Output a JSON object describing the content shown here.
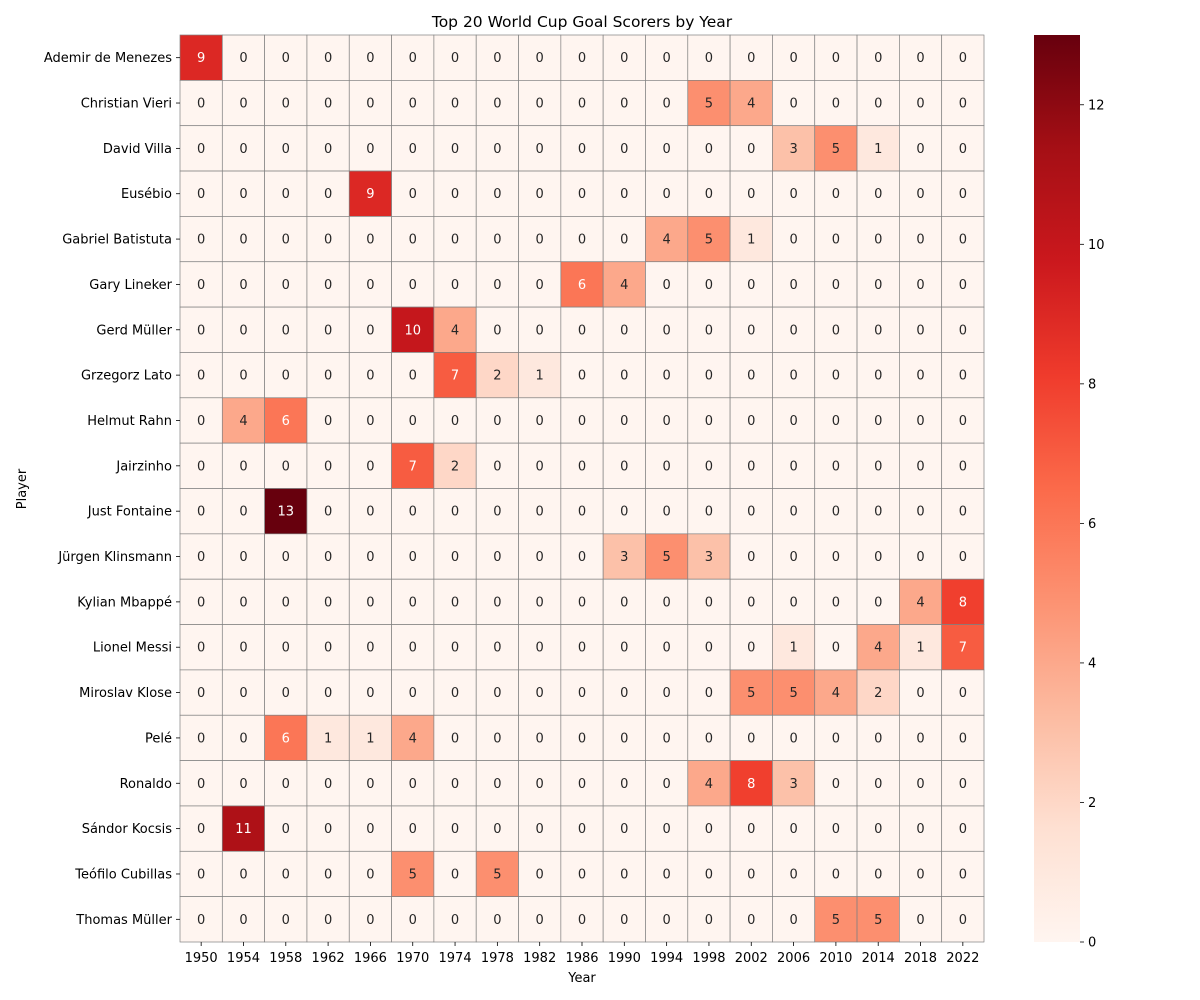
{
  "chart_data": {
    "type": "heatmap",
    "title": "Top 20 World Cup Goal Scorers by Year",
    "xlabel": "Year",
    "ylabel": "Player",
    "colormap": "Reds",
    "color_range": [
      0,
      13
    ],
    "colorbar_ticks": [
      0,
      2,
      4,
      6,
      8,
      10,
      12
    ],
    "colorbar_tick_labels": [
      "0",
      "2",
      "4",
      "6",
      "8",
      "10",
      "12"
    ],
    "x": [
      "1950",
      "1954",
      "1958",
      "1962",
      "1966",
      "1970",
      "1974",
      "1978",
      "1982",
      "1986",
      "1990",
      "1994",
      "1998",
      "2002",
      "2006",
      "2010",
      "2014",
      "2018",
      "2022"
    ],
    "y": [
      "Ademir de Menezes",
      "Christian Vieri",
      "David Villa",
      "Eusébio",
      "Gabriel Batistuta",
      "Gary Lineker",
      "Gerd Müller",
      "Grzegorz Lato",
      "Helmut Rahn",
      "Jairzinho",
      "Just Fontaine",
      "Jürgen Klinsmann",
      "Kylian Mbappé",
      "Lionel Messi",
      "Miroslav Klose",
      "Pelé",
      "Ronaldo",
      "Sándor Kocsis",
      "Teófilo Cubillas",
      "Thomas Müller"
    ],
    "values": [
      [
        9,
        0,
        0,
        0,
        0,
        0,
        0,
        0,
        0,
        0,
        0,
        0,
        0,
        0,
        0,
        0,
        0,
        0,
        0
      ],
      [
        0,
        0,
        0,
        0,
        0,
        0,
        0,
        0,
        0,
        0,
        0,
        0,
        5,
        4,
        0,
        0,
        0,
        0,
        0
      ],
      [
        0,
        0,
        0,
        0,
        0,
        0,
        0,
        0,
        0,
        0,
        0,
        0,
        0,
        0,
        3,
        5,
        1,
        0,
        0
      ],
      [
        0,
        0,
        0,
        0,
        9,
        0,
        0,
        0,
        0,
        0,
        0,
        0,
        0,
        0,
        0,
        0,
        0,
        0,
        0
      ],
      [
        0,
        0,
        0,
        0,
        0,
        0,
        0,
        0,
        0,
        0,
        0,
        4,
        5,
        1,
        0,
        0,
        0,
        0,
        0
      ],
      [
        0,
        0,
        0,
        0,
        0,
        0,
        0,
        0,
        0,
        6,
        4,
        0,
        0,
        0,
        0,
        0,
        0,
        0,
        0
      ],
      [
        0,
        0,
        0,
        0,
        0,
        10,
        4,
        0,
        0,
        0,
        0,
        0,
        0,
        0,
        0,
        0,
        0,
        0,
        0
      ],
      [
        0,
        0,
        0,
        0,
        0,
        0,
        7,
        2,
        1,
        0,
        0,
        0,
        0,
        0,
        0,
        0,
        0,
        0,
        0
      ],
      [
        0,
        4,
        6,
        0,
        0,
        0,
        0,
        0,
        0,
        0,
        0,
        0,
        0,
        0,
        0,
        0,
        0,
        0,
        0
      ],
      [
        0,
        0,
        0,
        0,
        0,
        7,
        2,
        0,
        0,
        0,
        0,
        0,
        0,
        0,
        0,
        0,
        0,
        0,
        0
      ],
      [
        0,
        0,
        13,
        0,
        0,
        0,
        0,
        0,
        0,
        0,
        0,
        0,
        0,
        0,
        0,
        0,
        0,
        0,
        0
      ],
      [
        0,
        0,
        0,
        0,
        0,
        0,
        0,
        0,
        0,
        0,
        3,
        5,
        3,
        0,
        0,
        0,
        0,
        0,
        0
      ],
      [
        0,
        0,
        0,
        0,
        0,
        0,
        0,
        0,
        0,
        0,
        0,
        0,
        0,
        0,
        0,
        0,
        0,
        4,
        8
      ],
      [
        0,
        0,
        0,
        0,
        0,
        0,
        0,
        0,
        0,
        0,
        0,
        0,
        0,
        0,
        1,
        0,
        4,
        1,
        7
      ],
      [
        0,
        0,
        0,
        0,
        0,
        0,
        0,
        0,
        0,
        0,
        0,
        0,
        0,
        5,
        5,
        4,
        2,
        0,
        0
      ],
      [
        0,
        0,
        6,
        1,
        1,
        4,
        0,
        0,
        0,
        0,
        0,
        0,
        0,
        0,
        0,
        0,
        0,
        0,
        0
      ],
      [
        0,
        0,
        0,
        0,
        0,
        0,
        0,
        0,
        0,
        0,
        0,
        0,
        4,
        8,
        3,
        0,
        0,
        0,
        0
      ],
      [
        0,
        11,
        0,
        0,
        0,
        0,
        0,
        0,
        0,
        0,
        0,
        0,
        0,
        0,
        0,
        0,
        0,
        0,
        0
      ],
      [
        0,
        0,
        0,
        0,
        0,
        5,
        0,
        5,
        0,
        0,
        0,
        0,
        0,
        0,
        0,
        0,
        0,
        0,
        0
      ],
      [
        0,
        0,
        0,
        0,
        0,
        0,
        0,
        0,
        0,
        0,
        0,
        0,
        0,
        0,
        0,
        5,
        5,
        0,
        0
      ]
    ],
    "grid": true,
    "legend": "none"
  }
}
